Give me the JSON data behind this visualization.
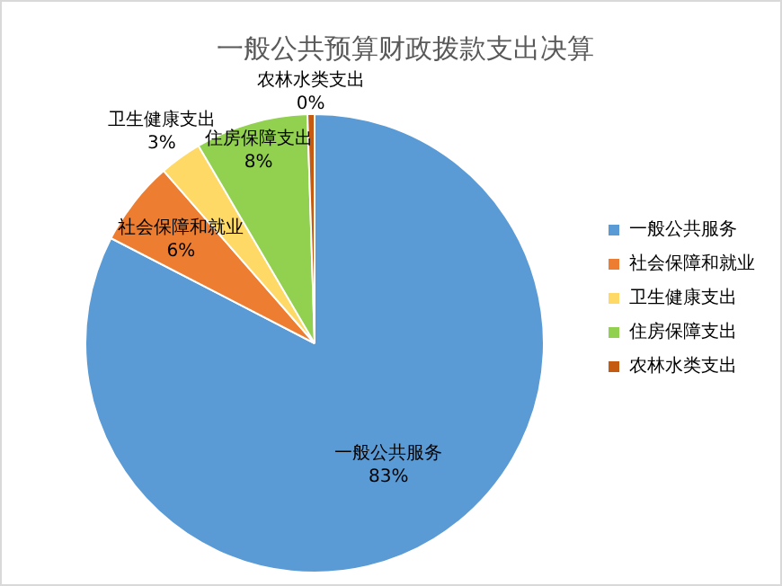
{
  "chart_data": {
    "type": "pie",
    "title": "一般公共预算财政拨款支出决算",
    "categories": [
      "一般公共服务",
      "社会保障和就业",
      "卫生健康支出",
      "住房保障支出",
      "农林水类支出"
    ],
    "values": [
      83,
      6,
      3,
      8,
      0.5
    ],
    "value_labels": [
      "83%",
      "6%",
      "3%",
      "8%",
      "0%"
    ],
    "colors": [
      "#5b9bd5",
      "#ed7d31",
      "#ffd966",
      "#92d050",
      "#c55a11"
    ],
    "legend": "right"
  }
}
